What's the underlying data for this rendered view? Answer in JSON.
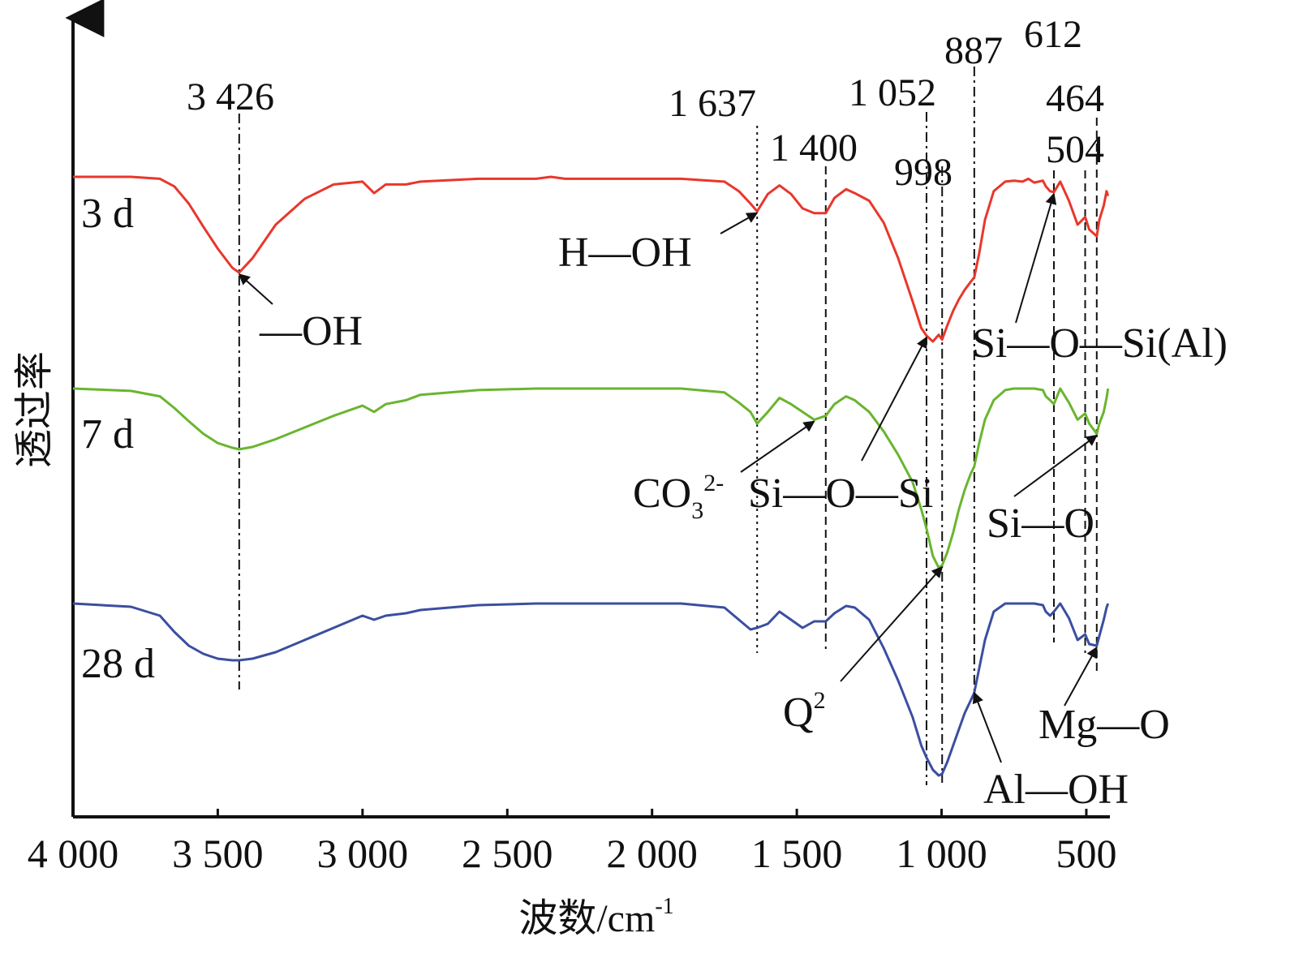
{
  "chart_data": {
    "type": "line",
    "title": "",
    "xlabel": "波数/cm",
    "xlabel_sup": "-1",
    "ylabel": "透过率",
    "xlim": [
      4000,
      420
    ],
    "x_reversed": true,
    "x_ticks": [
      4000,
      3500,
      3000,
      2500,
      2000,
      1500,
      1000,
      500
    ],
    "x_tick_labels": [
      "4 000",
      "3 500",
      "3 000",
      "2 500",
      "2 000",
      "1 500",
      "1 000",
      "500"
    ],
    "colors": {
      "3 d": "#e8372c",
      "7 d": "#6ab52f",
      "28 d": "#3b4ea0"
    },
    "series": [
      {
        "name": "3 d",
        "color": "#e8372c",
        "x": [
          4000,
          3800,
          3700,
          3650,
          3600,
          3550,
          3500,
          3450,
          3426,
          3380,
          3300,
          3200,
          3100,
          3000,
          2960,
          2920,
          2850,
          2800,
          2600,
          2400,
          2350,
          2300,
          2100,
          1900,
          1750,
          1700,
          1660,
          1637,
          1600,
          1560,
          1520,
          1480,
          1440,
          1400,
          1370,
          1330,
          1300,
          1250,
          1200,
          1150,
          1100,
          1070,
          1052,
          1030,
          1010,
          998,
          980,
          960,
          940,
          920,
          900,
          887,
          870,
          850,
          820,
          780,
          750,
          720,
          700,
          680,
          650,
          640,
          625,
          612,
          590,
          560,
          530,
          504,
          490,
          464,
          455,
          440,
          430,
          425
        ],
        "y": [
          0.0,
          0.0,
          0.02,
          0.1,
          0.28,
          0.52,
          0.75,
          0.95,
          1.0,
          0.85,
          0.5,
          0.23,
          0.08,
          0.05,
          0.17,
          0.08,
          0.08,
          0.05,
          0.02,
          0.02,
          0.0,
          0.02,
          0.02,
          0.02,
          0.05,
          0.15,
          0.28,
          0.36,
          0.18,
          0.09,
          0.18,
          0.33,
          0.38,
          0.38,
          0.22,
          0.13,
          0.17,
          0.25,
          0.48,
          0.85,
          1.3,
          1.58,
          1.66,
          1.72,
          1.65,
          1.7,
          1.55,
          1.4,
          1.28,
          1.18,
          1.1,
          1.05,
          0.8,
          0.45,
          0.15,
          0.05,
          0.04,
          0.05,
          0.02,
          0.06,
          0.04,
          0.1,
          0.15,
          0.16,
          0.05,
          0.25,
          0.5,
          0.42,
          0.55,
          0.62,
          0.45,
          0.3,
          0.15,
          0.2
        ]
      },
      {
        "name": "7 d",
        "color": "#6ab52f",
        "x": [
          4000,
          3800,
          3700,
          3650,
          3600,
          3550,
          3500,
          3450,
          3426,
          3380,
          3300,
          3200,
          3100,
          3000,
          2960,
          2920,
          2850,
          2800,
          2600,
          2400,
          2350,
          2300,
          2100,
          1900,
          1750,
          1700,
          1660,
          1637,
          1600,
          1560,
          1520,
          1480,
          1440,
          1400,
          1370,
          1330,
          1300,
          1250,
          1200,
          1150,
          1100,
          1070,
          1052,
          1030,
          1010,
          998,
          980,
          960,
          940,
          920,
          900,
          887,
          870,
          850,
          820,
          780,
          750,
          720,
          700,
          680,
          650,
          640,
          625,
          612,
          590,
          560,
          530,
          504,
          490,
          464,
          455,
          440,
          430,
          425
        ],
        "y": [
          0.0,
          0.03,
          0.1,
          0.25,
          0.42,
          0.58,
          0.7,
          0.76,
          0.78,
          0.75,
          0.65,
          0.5,
          0.35,
          0.22,
          0.3,
          0.2,
          0.15,
          0.08,
          0.02,
          0.0,
          0.0,
          0.0,
          0.0,
          0.0,
          0.05,
          0.18,
          0.3,
          0.45,
          0.3,
          0.12,
          0.2,
          0.3,
          0.4,
          0.35,
          0.2,
          0.1,
          0.15,
          0.3,
          0.55,
          0.85,
          1.2,
          1.55,
          1.8,
          2.15,
          2.3,
          2.27,
          2.1,
          1.85,
          1.55,
          1.3,
          1.1,
          1.0,
          0.7,
          0.4,
          0.15,
          0.02,
          0.0,
          0.0,
          0.0,
          0.0,
          0.02,
          0.1,
          0.15,
          0.2,
          0.0,
          0.18,
          0.4,
          0.32,
          0.45,
          0.58,
          0.45,
          0.3,
          0.12,
          0.0
        ]
      },
      {
        "name": "28 d",
        "color": "#3b4ea0",
        "x": [
          4000,
          3800,
          3700,
          3650,
          3600,
          3550,
          3500,
          3450,
          3426,
          3380,
          3300,
          3200,
          3100,
          3000,
          2960,
          2920,
          2850,
          2800,
          2600,
          2400,
          2350,
          2300,
          2100,
          1900,
          1750,
          1700,
          1660,
          1637,
          1600,
          1560,
          1520,
          1480,
          1440,
          1400,
          1370,
          1330,
          1300,
          1250,
          1200,
          1150,
          1100,
          1070,
          1052,
          1030,
          1010,
          998,
          980,
          960,
          940,
          920,
          900,
          887,
          870,
          850,
          820,
          780,
          750,
          720,
          700,
          680,
          650,
          640,
          625,
          612,
          590,
          560,
          530,
          504,
          490,
          464,
          455,
          440,
          430,
          425
        ],
        "y": [
          0.0,
          0.04,
          0.15,
          0.35,
          0.52,
          0.62,
          0.68,
          0.7,
          0.7,
          0.68,
          0.6,
          0.45,
          0.3,
          0.15,
          0.2,
          0.15,
          0.12,
          0.08,
          0.02,
          0.0,
          0.0,
          0.0,
          0.0,
          0.0,
          0.05,
          0.2,
          0.32,
          0.3,
          0.25,
          0.1,
          0.2,
          0.3,
          0.22,
          0.22,
          0.12,
          0.03,
          0.05,
          0.2,
          0.55,
          0.95,
          1.4,
          1.75,
          1.9,
          2.05,
          2.12,
          2.1,
          1.95,
          1.75,
          1.55,
          1.35,
          1.2,
          1.1,
          0.8,
          0.45,
          0.1,
          0.0,
          0.0,
          0.0,
          0.0,
          0.0,
          0.02,
          0.1,
          0.15,
          0.1,
          0.0,
          0.18,
          0.45,
          0.38,
          0.5,
          0.52,
          0.4,
          0.2,
          0.05,
          0.0
        ]
      }
    ],
    "peak_lines": [
      {
        "x": 3426,
        "label": "3 426",
        "style": "dash-dot"
      },
      {
        "x": 1637,
        "label": "1 637",
        "style": "dotted"
      },
      {
        "x": 1400,
        "label": "1 400",
        "style": "dashed"
      },
      {
        "x": 1052,
        "label": "1 052",
        "style": "dash-dot"
      },
      {
        "x": 998,
        "label": "998",
        "style": "dash-dot"
      },
      {
        "x": 887,
        "label": "887",
        "style": "dash-dot"
      },
      {
        "x": 612,
        "label": "612",
        "style": "dashed"
      },
      {
        "x": 504,
        "label": "504",
        "style": "dashed"
      },
      {
        "x": 464,
        "label": "464",
        "style": "dashed"
      }
    ],
    "annotations": [
      {
        "text": "—OH",
        "target_x": 3426,
        "series": "3 d"
      },
      {
        "text": "H—OH",
        "target_x": 1637,
        "series": "3 d"
      },
      {
        "text": "Si—O—Si(Al)",
        "target_x": 612,
        "series": "3 d"
      },
      {
        "text": "CO",
        "sub": "3",
        "sup": "2-",
        "target_x": 1440,
        "series": "7 d"
      },
      {
        "text": "Si—O—Si",
        "target_x": 1052,
        "series": "3 d"
      },
      {
        "text": "Si—O",
        "target_x": 464,
        "series": "7 d"
      },
      {
        "text": "Q",
        "sup": "2",
        "target_x": 998,
        "series": "7 d"
      },
      {
        "text": "Al—OH",
        "target_x": 887,
        "series": "28 d"
      },
      {
        "text": "Mg—O",
        "target_x": 464,
        "series": "28 d"
      }
    ],
    "grid": false,
    "legend": "none"
  }
}
